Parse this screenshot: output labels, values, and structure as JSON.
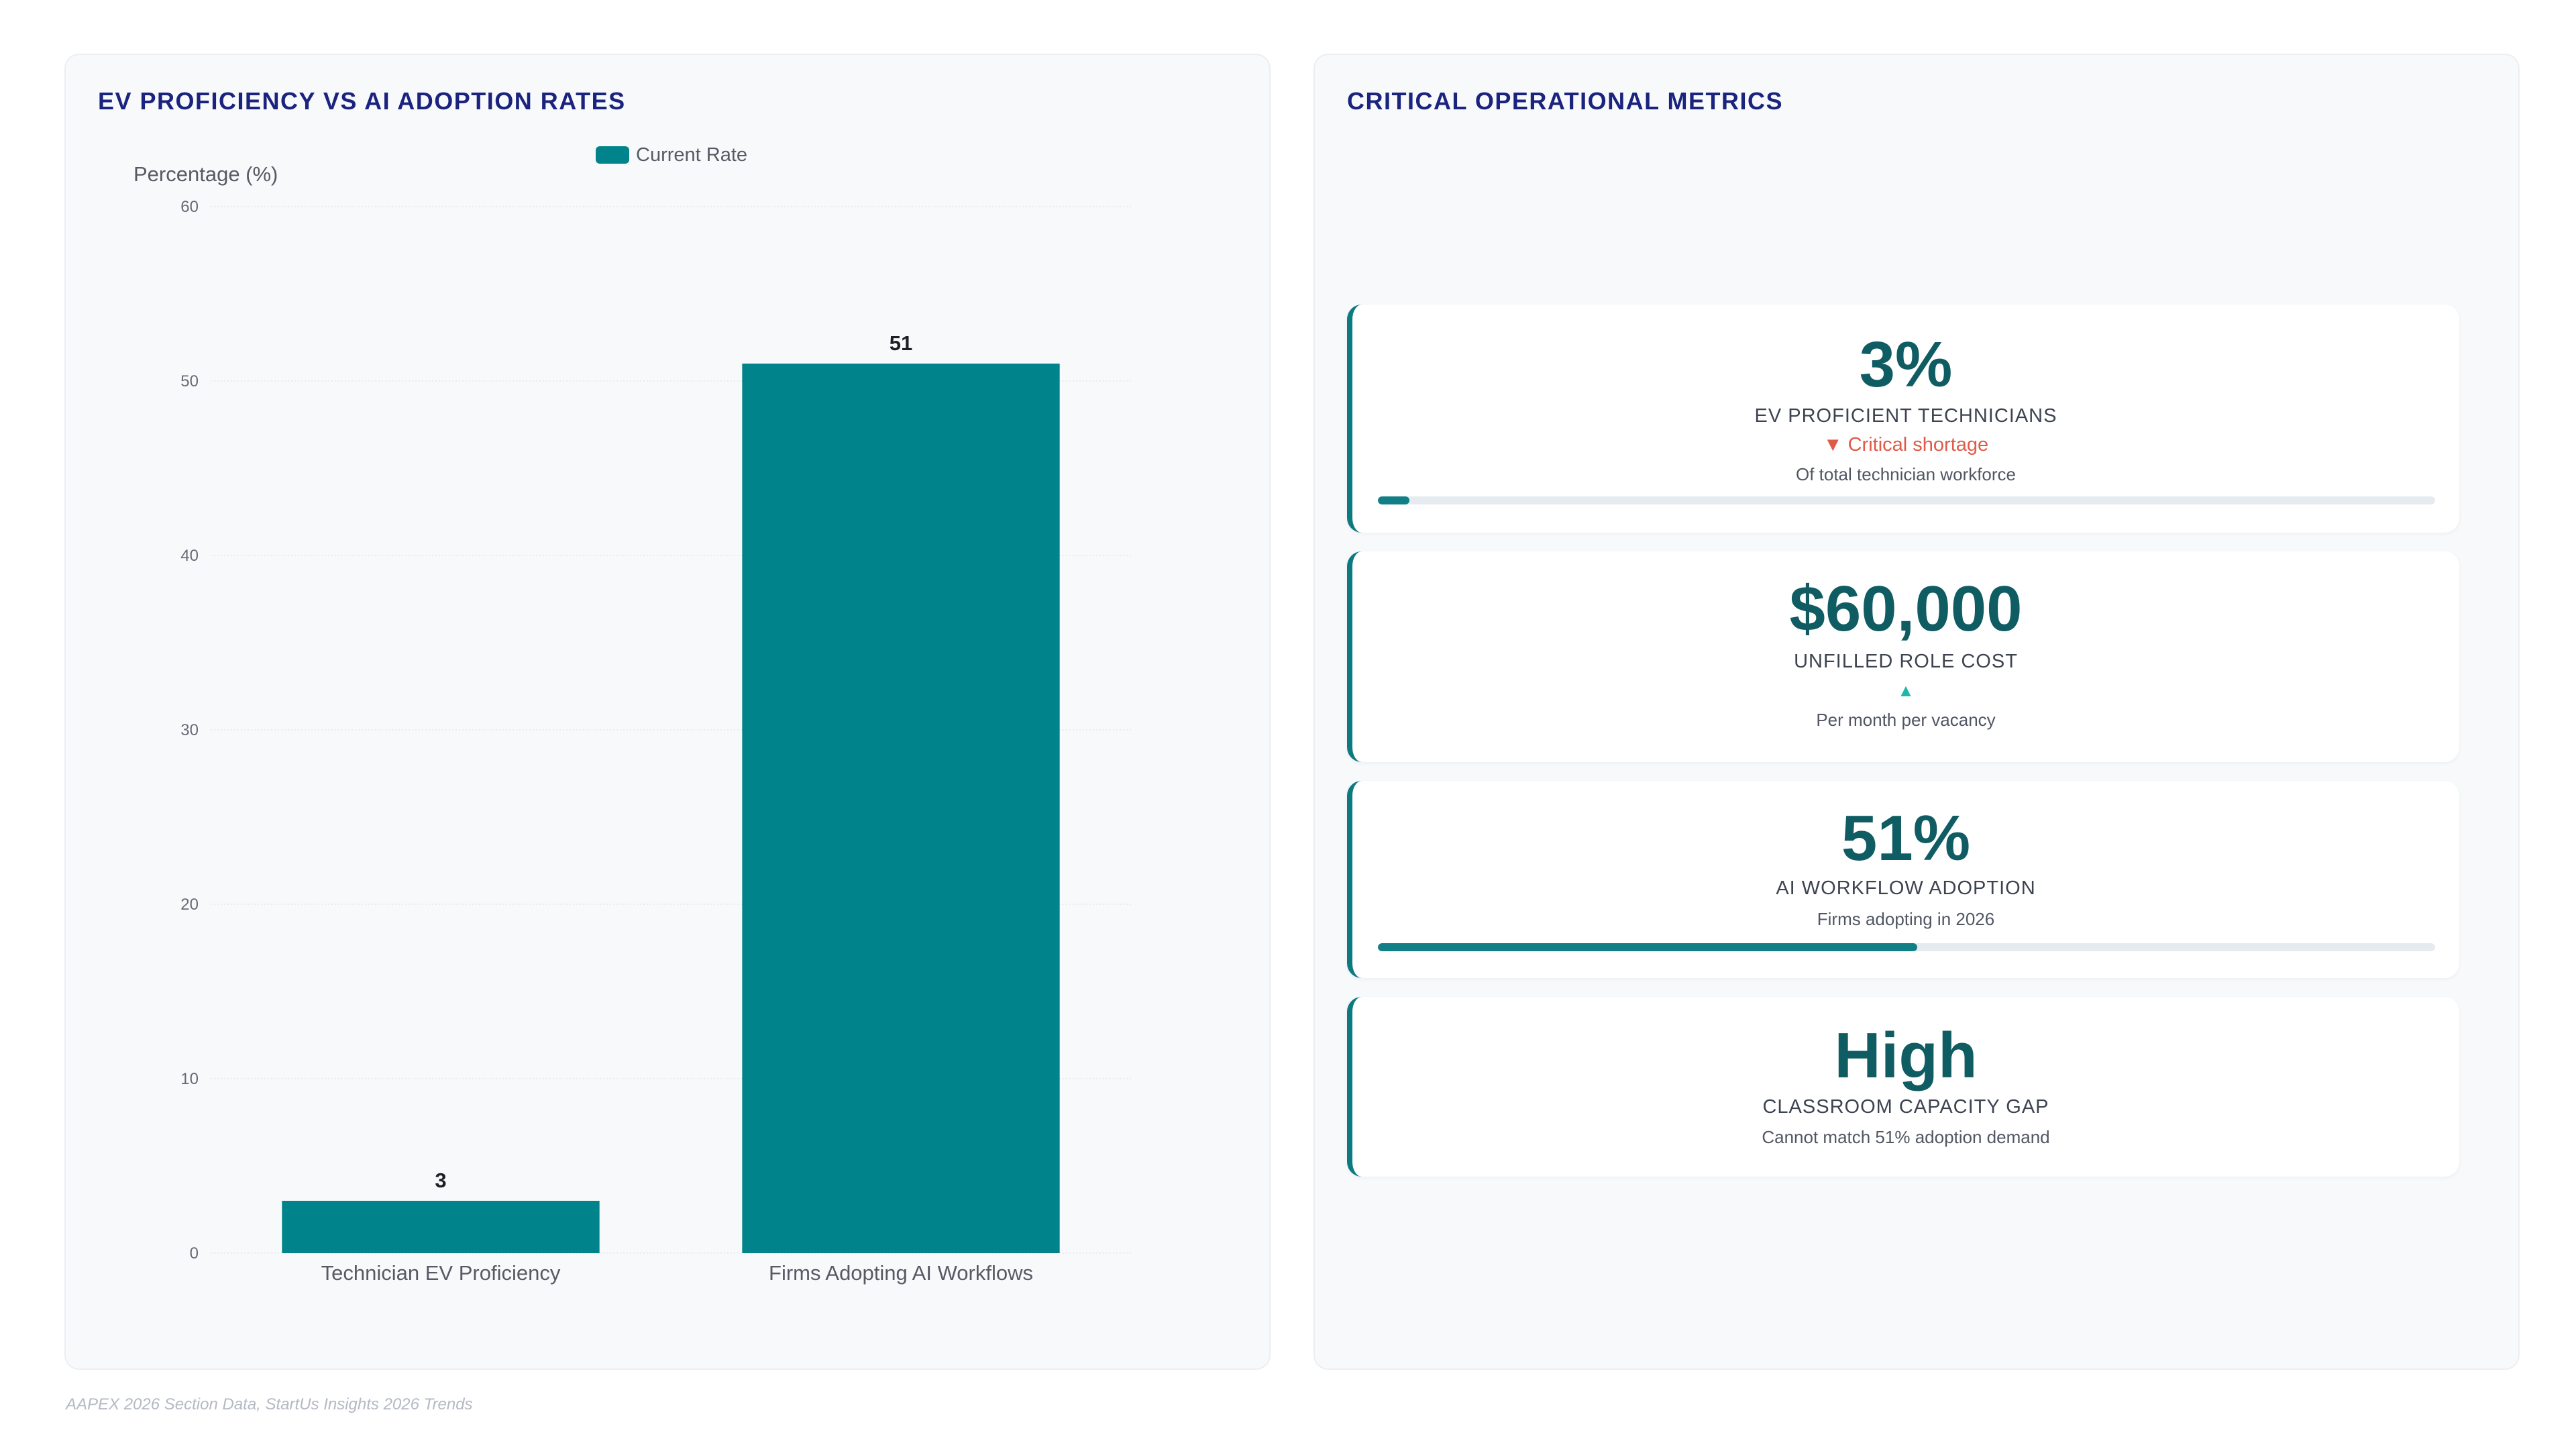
{
  "left_panel": {
    "title": "EV PROFICIENCY VS AI ADOPTION RATES"
  },
  "right_panel": {
    "title": "CRITICAL OPERATIONAL METRICS"
  },
  "chart_data": {
    "type": "bar",
    "categories": [
      "Technician EV Proficiency",
      "Firms Adopting AI Workflows"
    ],
    "series": [
      {
        "name": "Current Rate",
        "values": [
          3,
          51
        ],
        "color": "#00838a"
      }
    ],
    "data_labels": [
      "3",
      "51"
    ],
    "ylabel": "Percentage (%)",
    "xlabel": "",
    "ylim": [
      0,
      60
    ],
    "yticks": [
      "0",
      "10",
      "20",
      "30",
      "40",
      "50",
      "60"
    ],
    "grid": true,
    "legend_position": "top-center"
  },
  "metrics": [
    {
      "value": "3%",
      "label": "EV PROFICIENT TECHNICIANS",
      "trend_icon": "triangle-down-icon",
      "trend_symbol": "▼",
      "trend_text": "Critical shortage",
      "trend_color": "#e05a47",
      "note": "Of total technician workforce",
      "progress": 0.03
    },
    {
      "value": "$60,000",
      "label": "UNFILLED ROLE COST",
      "trend_icon": "triangle-up-icon",
      "trend_symbol": "▲",
      "trend_text": "",
      "trend_color": "#1fb8a6",
      "note": "Per month per vacancy"
    },
    {
      "value": "51%",
      "label": "AI WORKFLOW ADOPTION",
      "note": "Firms adopting in 2026",
      "progress": 0.51
    },
    {
      "value": "High",
      "label": "CLASSROOM CAPACITY GAP",
      "note": "Cannot match 51% adoption demand"
    }
  ],
  "source": "AAPEX 2026 Section Data, StartUs Insights 2026 Trends",
  "colors": {
    "accent": "#0d7a80",
    "title": "#1a237e",
    "value": "#0f5c63",
    "negative": "#e05a47",
    "positive": "#1fb8a6"
  }
}
